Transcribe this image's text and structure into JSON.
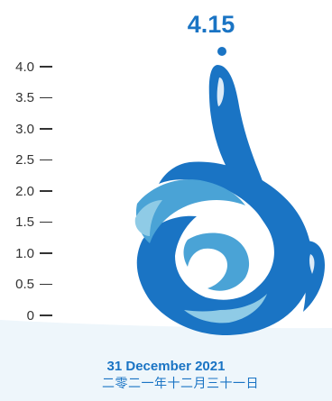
{
  "reading": {
    "value_text": "4.15",
    "value": 4.15
  },
  "scale": {
    "ticks": [
      "4.0",
      "3.5",
      "3.0",
      "2.5",
      "2.0",
      "1.5",
      "1.0",
      "0.5",
      "0"
    ]
  },
  "date": {
    "english": "31 December 2021",
    "chinese": "二零二一年十二月三十一日"
  },
  "logo": {
    "icon": "water-drop-wave-logo"
  },
  "colors": {
    "primary_blue": "#1a74c4",
    "light_blue": "#4aa3d6",
    "pale_blue": "#8fcbe6",
    "band": "#eef6fb",
    "text_blue": "#1a74c4"
  }
}
